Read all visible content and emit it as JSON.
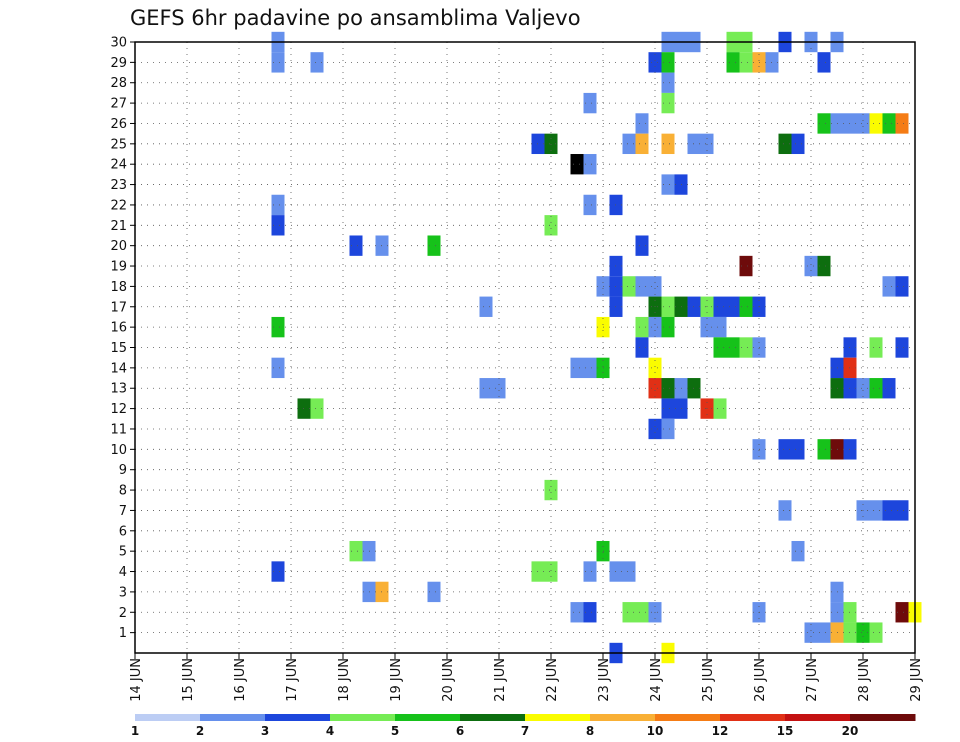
{
  "chart_data": {
    "type": "heatmap",
    "title": "GEFS 6hr padavine po ansamblima Valjevo",
    "xlabel": "",
    "ylabel": "",
    "x_range": [
      14,
      29
    ],
    "y_range": [
      0,
      30
    ],
    "x_tick_labels": [
      "14 JUN",
      "15 JUN",
      "16 JUN",
      "17 JUN",
      "18 JUN",
      "19 JUN",
      "20 JUN",
      "21 JUN",
      "22 JUN",
      "23 JUN",
      "24 JUN",
      "25 JUN",
      "26 JUN",
      "27 JUN",
      "28 JUN",
      "29 JUN"
    ],
    "y_tick_labels": [
      "1",
      "2",
      "3",
      "4",
      "5",
      "6",
      "7",
      "8",
      "9",
      "10",
      "11",
      "12",
      "13",
      "14",
      "15",
      "16",
      "17",
      "18",
      "19",
      "20",
      "21",
      "22",
      "23",
      "24",
      "25",
      "26",
      "27",
      "28",
      "29",
      "30"
    ],
    "colorbar": {
      "bins": [
        "#bccdf4",
        "#6690ec",
        "#1d46dc",
        "#76ec55",
        "#16c21a",
        "#0d6e0f",
        "#fafc00",
        "#f9b035",
        "#f57c15",
        "#e13016",
        "#c41111",
        "#6e0b0b"
      ],
      "labels": [
        "1",
        "2",
        "3",
        "4",
        "5",
        "6",
        "7",
        "8",
        "10",
        "12",
        "15",
        "20"
      ]
    },
    "cells": [
      [
        16.75,
        30,
        1
      ],
      [
        24.25,
        30,
        1
      ],
      [
        24.75,
        30,
        1
      ],
      [
        24.5,
        30,
        1
      ],
      [
        25.5,
        30,
        3
      ],
      [
        25.75,
        30,
        3
      ],
      [
        26.5,
        30,
        2
      ],
      [
        27.0,
        30,
        1
      ],
      [
        27.5,
        30,
        1
      ],
      [
        16.75,
        29,
        1
      ],
      [
        17.5,
        29,
        1
      ],
      [
        24.0,
        29,
        2
      ],
      [
        24.25,
        29,
        4
      ],
      [
        25.5,
        29,
        4
      ],
      [
        25.75,
        29,
        3
      ],
      [
        26.0,
        29,
        7
      ],
      [
        26.25,
        29,
        1
      ],
      [
        27.25,
        29,
        2
      ],
      [
        24.25,
        28,
        1
      ],
      [
        24.25,
        27,
        3
      ],
      [
        22.75,
        27,
        1
      ],
      [
        23.75,
        26,
        1
      ],
      [
        27.25,
        26,
        4
      ],
      [
        27.5,
        26,
        1
      ],
      [
        27.75,
        26,
        1
      ],
      [
        28.0,
        26,
        1
      ],
      [
        28.25,
        26,
        6
      ],
      [
        28.5,
        26,
        4
      ],
      [
        28.75,
        26,
        8
      ],
      [
        21.75,
        25,
        2
      ],
      [
        22.0,
        25,
        5
      ],
      [
        23.5,
        25,
        1
      ],
      [
        23.75,
        25,
        7
      ],
      [
        24.25,
        25,
        7
      ],
      [
        24.75,
        25,
        1
      ],
      [
        25.0,
        25,
        1
      ],
      [
        26.5,
        25,
        5
      ],
      [
        26.75,
        25,
        2
      ],
      [
        22.5,
        24,
        12
      ],
      [
        22.75,
        24,
        1
      ],
      [
        24.25,
        23,
        1
      ],
      [
        24.5,
        23,
        2
      ],
      [
        16.75,
        22,
        1
      ],
      [
        22.75,
        22,
        1
      ],
      [
        23.25,
        22,
        2
      ],
      [
        16.75,
        21,
        2
      ],
      [
        22.0,
        21,
        3
      ],
      [
        18.25,
        20,
        2
      ],
      [
        18.75,
        20,
        1
      ],
      [
        19.75,
        20,
        4
      ],
      [
        23.75,
        20,
        2
      ],
      [
        23.25,
        19,
        2
      ],
      [
        25.75,
        19,
        11
      ],
      [
        27.0,
        19,
        1
      ],
      [
        27.25,
        19,
        5
      ],
      [
        23.25,
        18,
        2
      ],
      [
        23.5,
        18,
        3
      ],
      [
        23.75,
        18,
        1
      ],
      [
        24.0,
        18,
        1
      ],
      [
        23.0,
        18,
        1
      ],
      [
        28.5,
        18,
        1
      ],
      [
        28.75,
        18,
        2
      ],
      [
        20.75,
        17,
        1
      ],
      [
        23.25,
        17,
        2
      ],
      [
        24.0,
        17,
        5
      ],
      [
        24.25,
        17,
        3
      ],
      [
        24.5,
        17,
        5
      ],
      [
        24.75,
        17,
        2
      ],
      [
        25.0,
        17,
        3
      ],
      [
        25.25,
        17,
        2
      ],
      [
        25.5,
        17,
        2
      ],
      [
        25.75,
        17,
        4
      ],
      [
        26.0,
        17,
        2
      ],
      [
        16.75,
        16,
        4
      ],
      [
        23.0,
        16,
        6
      ],
      [
        23.75,
        16,
        3
      ],
      [
        24.0,
        16,
        1
      ],
      [
        24.25,
        16,
        4
      ],
      [
        25.0,
        16,
        1
      ],
      [
        25.25,
        16,
        1
      ],
      [
        23.75,
        15,
        2
      ],
      [
        25.25,
        15,
        4
      ],
      [
        25.5,
        15,
        4
      ],
      [
        25.75,
        15,
        3
      ],
      [
        26.0,
        15,
        1
      ],
      [
        27.75,
        15,
        2
      ],
      [
        28.25,
        15,
        3
      ],
      [
        28.75,
        15,
        2
      ],
      [
        16.75,
        14,
        1
      ],
      [
        22.5,
        14,
        1
      ],
      [
        22.75,
        14,
        1
      ],
      [
        23.0,
        14,
        4
      ],
      [
        24.0,
        14,
        6
      ],
      [
        27.5,
        14,
        2
      ],
      [
        27.75,
        14,
        9
      ],
      [
        20.75,
        13,
        1
      ],
      [
        21.0,
        13,
        1
      ],
      [
        24.0,
        13,
        9
      ],
      [
        24.25,
        13,
        5
      ],
      [
        24.5,
        13,
        1
      ],
      [
        24.75,
        13,
        5
      ],
      [
        27.5,
        13,
        5
      ],
      [
        27.75,
        13,
        2
      ],
      [
        28.0,
        13,
        1
      ],
      [
        28.25,
        13,
        4
      ],
      [
        28.5,
        13,
        2
      ],
      [
        17.25,
        12,
        5
      ],
      [
        17.5,
        12,
        3
      ],
      [
        24.25,
        12,
        2
      ],
      [
        24.5,
        12,
        2
      ],
      [
        25.0,
        12,
        9
      ],
      [
        25.25,
        12,
        3
      ],
      [
        24.0,
        11,
        2
      ],
      [
        24.25,
        11,
        1
      ],
      [
        26.0,
        10,
        1
      ],
      [
        26.5,
        10,
        2
      ],
      [
        26.75,
        10,
        2
      ],
      [
        27.25,
        10,
        4
      ],
      [
        27.5,
        10,
        11
      ],
      [
        27.75,
        10,
        2
      ],
      [
        22.0,
        8,
        3
      ],
      [
        26.5,
        7,
        1
      ],
      [
        28.0,
        7,
        1
      ],
      [
        28.25,
        7,
        1
      ],
      [
        28.5,
        7,
        2
      ],
      [
        28.75,
        7,
        2
      ],
      [
        18.25,
        5,
        3
      ],
      [
        18.5,
        5,
        1
      ],
      [
        23.0,
        5,
        4
      ],
      [
        26.75,
        5,
        1
      ],
      [
        16.75,
        4,
        2
      ],
      [
        21.75,
        4,
        3
      ],
      [
        22.0,
        4,
        3
      ],
      [
        22.75,
        4,
        1
      ],
      [
        23.25,
        4,
        1
      ],
      [
        23.5,
        4,
        1
      ],
      [
        18.5,
        3,
        1
      ],
      [
        18.75,
        3,
        7
      ],
      [
        19.75,
        3,
        1
      ],
      [
        27.5,
        3,
        1
      ],
      [
        22.5,
        2,
        1
      ],
      [
        22.75,
        2,
        2
      ],
      [
        23.5,
        2,
        3
      ],
      [
        23.75,
        2,
        3
      ],
      [
        24.0,
        2,
        1
      ],
      [
        26.0,
        2,
        1
      ],
      [
        27.5,
        2,
        1
      ],
      [
        27.75,
        2,
        3
      ],
      [
        28.75,
        2,
        11
      ],
      [
        29.0,
        2,
        6
      ],
      [
        27.0,
        1,
        1
      ],
      [
        27.25,
        1,
        1
      ],
      [
        27.5,
        1,
        7
      ],
      [
        27.75,
        1,
        3
      ],
      [
        28.0,
        1,
        4
      ],
      [
        28.25,
        1,
        3
      ],
      [
        23.25,
        0,
        2
      ],
      [
        24.25,
        0,
        6
      ]
    ]
  }
}
